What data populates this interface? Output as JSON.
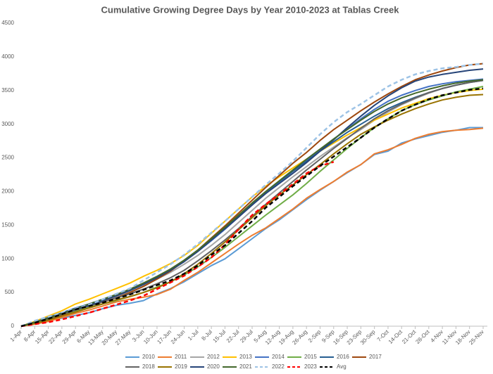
{
  "chart_data": {
    "type": "line",
    "title": "Cumulative Growing Degree Days by Year 2010-2023 at Tablas Creek",
    "categories": [
      "1-Apr",
      "8-Apr",
      "15-Apr",
      "22-Apr",
      "29-Apr",
      "6-May",
      "13-May",
      "20-May",
      "27-May",
      "3-Jun",
      "10-Jun",
      "17-Jun",
      "24-Jun",
      "1-Jul",
      "8-Jul",
      "15-Jul",
      "22-Jul",
      "29-Jul",
      "5-Aug",
      "12-Aug",
      "19-Aug",
      "26-Aug",
      "2-Sep",
      "9-Sep",
      "16-Sep",
      "23-Sep",
      "30-Sep",
      "7-Oct",
      "14-Oct",
      "21-Oct",
      "28-Oct",
      "4-Nov",
      "11-Nov",
      "18-Nov",
      "25-Nov"
    ],
    "ylim": [
      0,
      4500
    ],
    "yticks": [
      0,
      500,
      1000,
      1500,
      2000,
      2500,
      3000,
      3500,
      4000,
      4500
    ],
    "grid": false,
    "legend": "bottom",
    "series": [
      {
        "name": "2010",
        "color": "#5b9bd5",
        "style": "solid",
        "values": [
          0,
          40,
          80,
          120,
          160,
          200,
          260,
          310,
          340,
          380,
          480,
          560,
          660,
          780,
          900,
          1000,
          1150,
          1300,
          1450,
          1580,
          1730,
          1880,
          2020,
          2150,
          2280,
          2400,
          2550,
          2600,
          2720,
          2780,
          2830,
          2880,
          2910,
          2950,
          2950
        ]
      },
      {
        "name": "2011",
        "color": "#ed7d31",
        "style": "solid",
        "values": [
          0,
          30,
          70,
          130,
          190,
          240,
          300,
          360,
          400,
          430,
          470,
          550,
          680,
          800,
          940,
          1080,
          1220,
          1350,
          1460,
          1600,
          1740,
          1900,
          2030,
          2150,
          2290,
          2400,
          2560,
          2620,
          2700,
          2790,
          2850,
          2890,
          2910,
          2920,
          2940
        ]
      },
      {
        "name": "2012",
        "color": "#a5a5a5",
        "style": "solid",
        "values": [
          0,
          60,
          120,
          190,
          260,
          320,
          380,
          440,
          520,
          600,
          700,
          800,
          920,
          1050,
          1200,
          1360,
          1540,
          1720,
          1900,
          2060,
          2220,
          2370,
          2520,
          2660,
          2800,
          2920,
          3060,
          3180,
          3290,
          3380,
          3460,
          3530,
          3580,
          3620,
          3650
        ]
      },
      {
        "name": "2013",
        "color": "#ffc000",
        "style": "solid",
        "values": [
          0,
          70,
          150,
          230,
          330,
          400,
          480,
          560,
          640,
          740,
          830,
          930,
          1050,
          1200,
          1380,
          1560,
          1740,
          1920,
          2080,
          2220,
          2350,
          2480,
          2600,
          2720,
          2840,
          2950,
          3060,
          3150,
          3240,
          3310,
          3380,
          3430,
          3470,
          3500,
          3520
        ]
      },
      {
        "name": "2014",
        "color": "#4472c4",
        "style": "solid",
        "values": [
          0,
          60,
          130,
          200,
          270,
          330,
          400,
          470,
          540,
          620,
          720,
          830,
          960,
          1110,
          1270,
          1440,
          1620,
          1800,
          1980,
          2140,
          2300,
          2460,
          2620,
          2780,
          2930,
          3080,
          3220,
          3340,
          3430,
          3500,
          3560,
          3600,
          3630,
          3650,
          3670
        ]
      },
      {
        "name": "2015",
        "color": "#70ad47",
        "style": "solid",
        "values": [
          0,
          50,
          100,
          160,
          230,
          280,
          330,
          380,
          440,
          500,
          580,
          660,
          760,
          880,
          1020,
          1170,
          1330,
          1490,
          1650,
          1800,
          1950,
          2120,
          2300,
          2470,
          2640,
          2800,
          2950,
          3080,
          3200,
          3290,
          3360,
          3420,
          3480,
          3520,
          3560
        ]
      },
      {
        "name": "2016",
        "color": "#255e91",
        "style": "solid",
        "values": [
          0,
          60,
          120,
          190,
          260,
          320,
          390,
          460,
          540,
          630,
          730,
          840,
          980,
          1130,
          1290,
          1460,
          1640,
          1820,
          1990,
          2150,
          2300,
          2450,
          2600,
          2740,
          2880,
          3000,
          3120,
          3230,
          3320,
          3400,
          3470,
          3530,
          3580,
          3620,
          3650
        ]
      },
      {
        "name": "2017",
        "color": "#9e480e",
        "style": "solid",
        "values": [
          0,
          50,
          100,
          170,
          240,
          300,
          360,
          420,
          500,
          590,
          700,
          820,
          970,
          1130,
          1310,
          1490,
          1680,
          1870,
          2060,
          2240,
          2420,
          2580,
          2760,
          2920,
          3060,
          3200,
          3330,
          3450,
          3560,
          3660,
          3730,
          3790,
          3840,
          3880,
          3900
        ]
      },
      {
        "name": "2018",
        "color": "#636363",
        "style": "solid",
        "values": [
          0,
          50,
          110,
          180,
          240,
          300,
          360,
          420,
          480,
          550,
          630,
          720,
          830,
          970,
          1120,
          1280,
          1450,
          1630,
          1810,
          1980,
          2150,
          2320,
          2480,
          2640,
          2790,
          2940,
          3080,
          3200,
          3300,
          3390,
          3470,
          3530,
          3580,
          3620,
          3650
        ]
      },
      {
        "name": "2019",
        "color": "#997300",
        "style": "solid",
        "values": [
          0,
          40,
          90,
          150,
          210,
          270,
          330,
          390,
          440,
          500,
          570,
          660,
          780,
          920,
          1080,
          1250,
          1430,
          1610,
          1790,
          1950,
          2100,
          2250,
          2400,
          2560,
          2710,
          2850,
          2960,
          3060,
          3150,
          3230,
          3300,
          3360,
          3400,
          3430,
          3440
        ]
      },
      {
        "name": "2020",
        "color": "#264478",
        "style": "solid",
        "values": [
          0,
          60,
          120,
          190,
          250,
          310,
          380,
          450,
          530,
          620,
          720,
          830,
          960,
          1110,
          1280,
          1450,
          1620,
          1800,
          1970,
          2120,
          2270,
          2430,
          2600,
          2770,
          2950,
          3120,
          3280,
          3420,
          3540,
          3640,
          3700,
          3740,
          3770,
          3800,
          3820
        ]
      },
      {
        "name": "2021",
        "color": "#43682b",
        "style": "solid",
        "values": [
          0,
          60,
          120,
          190,
          260,
          330,
          400,
          470,
          550,
          640,
          740,
          850,
          980,
          1130,
          1300,
          1470,
          1650,
          1830,
          2000,
          2160,
          2320,
          2480,
          2630,
          2780,
          2920,
          3060,
          3190,
          3300,
          3390,
          3460,
          3520,
          3570,
          3610,
          3640,
          3660
        ]
      },
      {
        "name": "2022",
        "color": "#9dc3e6",
        "style": "dashed",
        "values": [
          0,
          80,
          140,
          200,
          260,
          320,
          400,
          480,
          560,
          680,
          800,
          920,
          1060,
          1220,
          1390,
          1560,
          1740,
          1920,
          2100,
          2270,
          2450,
          2650,
          2850,
          3030,
          3180,
          3300,
          3430,
          3560,
          3660,
          3740,
          3790,
          3830,
          3850,
          3880,
          3900
        ]
      },
      {
        "name": "2023",
        "color": "#ff0000",
        "style": "dashed",
        "values": [
          0,
          30,
          60,
          100,
          150,
          200,
          260,
          320,
          380,
          450,
          550,
          650,
          750,
          880,
          1020,
          1210,
          1440,
          1650,
          1810,
          1960,
          2110,
          2270,
          2380,
          2440,
          null,
          null,
          null,
          null,
          null,
          null,
          null,
          null,
          null,
          null,
          null
        ]
      },
      {
        "name": "Avg",
        "color": "#000000",
        "style": "dashed",
        "values": [
          0,
          50,
          110,
          180,
          250,
          300,
          350,
          410,
          470,
          540,
          610,
          680,
          780,
          900,
          1060,
          1200,
          1380,
          1560,
          1760,
          1920,
          2080,
          2230,
          2380,
          2520,
          2660,
          2800,
          2950,
          3080,
          3200,
          3290,
          3370,
          3430,
          3470,
          3510,
          3530
        ]
      }
    ]
  }
}
